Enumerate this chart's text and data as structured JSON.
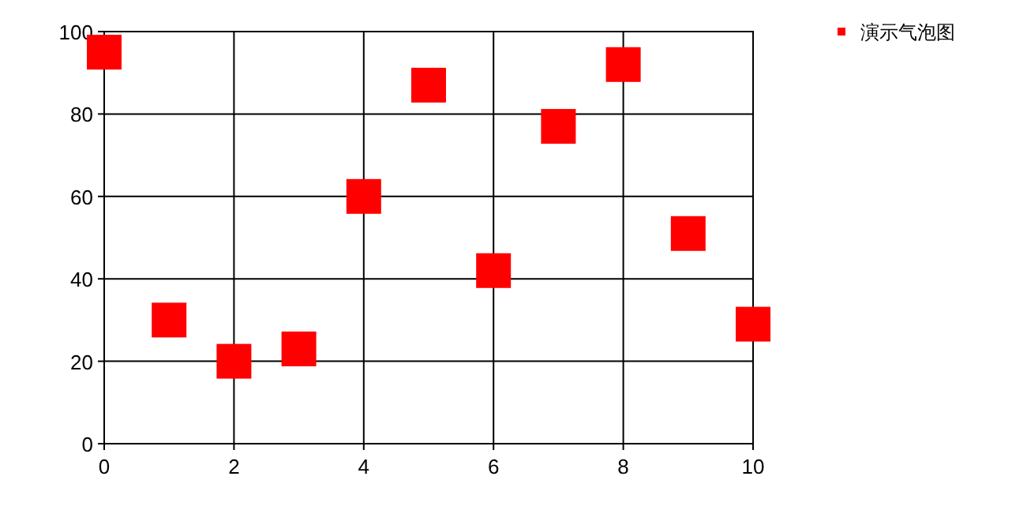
{
  "chart_data": {
    "type": "scatter",
    "x": [
      0,
      1,
      2,
      3,
      4,
      5,
      6,
      7,
      8,
      9,
      10
    ],
    "series": [
      {
        "name": "演示气泡图",
        "color": "#ff0000",
        "values": [
          95,
          30,
          20,
          23,
          60,
          87,
          42,
          77,
          92,
          51,
          29
        ]
      }
    ],
    "xlim": [
      0,
      10
    ],
    "ylim": [
      0,
      100
    ],
    "xticks": [
      0,
      2,
      4,
      6,
      8,
      10
    ],
    "yticks": [
      0,
      20,
      40,
      60,
      80,
      100
    ],
    "grid": true,
    "legend": "top right",
    "marker": "square"
  }
}
